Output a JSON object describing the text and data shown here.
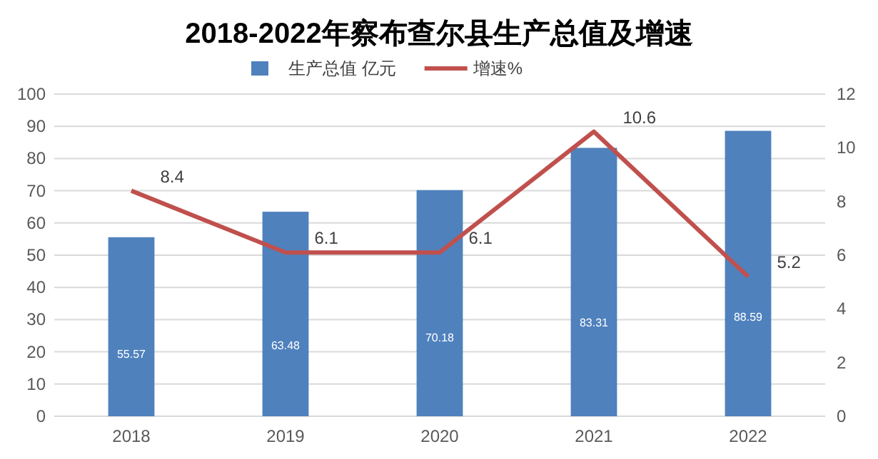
{
  "chart_data": {
    "type": "bar",
    "title": "2018-2022年察布查尔县生产总值及增速",
    "categories": [
      "2018",
      "2019",
      "2020",
      "2021",
      "2022"
    ],
    "series": [
      {
        "name": "生产总值 亿元",
        "color": "#4f81bd",
        "values": [
          55.57,
          63.48,
          70.18,
          83.31,
          88.59
        ]
      },
      {
        "name": "增速%",
        "type": "line",
        "axis": "y2",
        "color": "#c0504d",
        "values": [
          8.4,
          6.1,
          6.1,
          10.6,
          5.2
        ]
      }
    ],
    "ylim": [
      0,
      100
    ],
    "yticks": [
      0,
      10,
      20,
      30,
      40,
      50,
      60,
      70,
      80,
      90,
      100
    ],
    "y2lim": [
      0,
      12
    ],
    "y2ticks": [
      0,
      2,
      4,
      6,
      8,
      10,
      12
    ],
    "grid": "y",
    "legend": "top",
    "data_labels": true
  }
}
